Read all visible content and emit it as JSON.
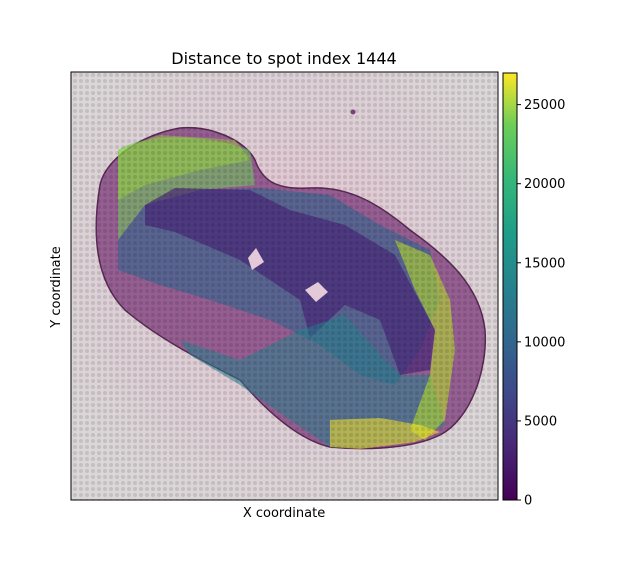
{
  "chart_data": {
    "type": "scatter",
    "title": "Distance to spot index 1444",
    "xlabel": "X coordinate",
    "ylabel": "Y coordinate",
    "xticks_shown": false,
    "yticks_shown": false,
    "background": "tissue histology image (H&E, pink/purple stain)",
    "colormap": "viridis",
    "colorbar": {
      "min": 0,
      "max": 27000,
      "ticks": [
        0,
        5000,
        10000,
        15000,
        20000,
        25000
      ],
      "tick_labels": [
        "0",
        "5000",
        "10000",
        "15000",
        "20000",
        "25000"
      ]
    },
    "highlighted_spot_index": 1444
  },
  "colors": {
    "viridis_low": "#440154",
    "viridis_mid": "#21918c",
    "viridis_high": "#fde725",
    "tissue": "#8b4a86",
    "background_slide": "#d9d4d6"
  }
}
